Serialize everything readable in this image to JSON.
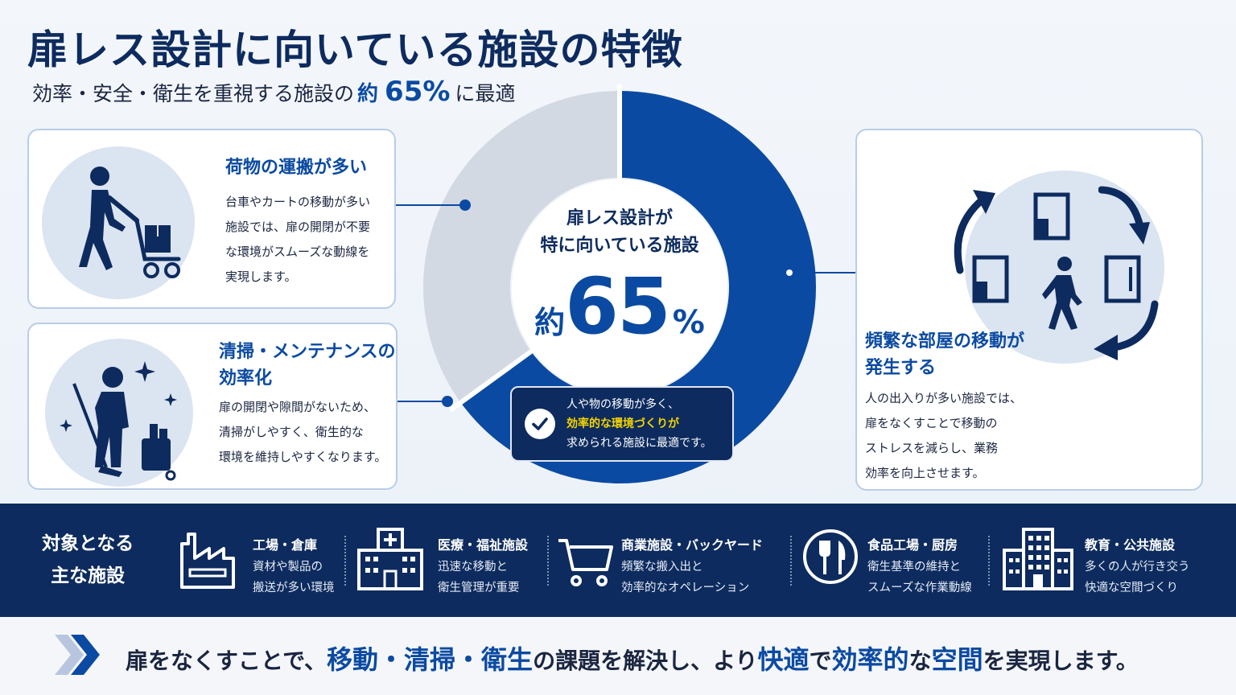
{
  "header": {
    "title": "扉レス設計に向いている施設の特徴",
    "subtitle_prefix": "効率・安全・衛生を重視する施設の",
    "subtitle_yaku": "約",
    "subtitle_pct": "65%",
    "subtitle_suffix": "に最適"
  },
  "cards": {
    "transport": {
      "title": "荷物の運搬が多い",
      "lines": [
        "台車やカートの移動が多い",
        "施設では、扉の開閉が不要",
        "な環境がスムーズな動線を",
        "実現します。"
      ],
      "icon": "person-pushing-cart-icon"
    },
    "cleaning": {
      "title_lines": [
        "清掃・メンテナンスの",
        "効率化"
      ],
      "lines": [
        "扉の開閉や隙間がないため、",
        "清掃がしやすく、衛生的な",
        "環境を維持しやすくなります。"
      ],
      "icon": "cleaning-person-icon"
    },
    "movement": {
      "title_lines": [
        "頻繁な部屋の移動が",
        "発生する"
      ],
      "lines": [
        "人の出入りが多い施設では、",
        "扉をなくすことで移動の",
        "ストレスを減らし、業務",
        "効率を向上させます。"
      ],
      "icon": "room-movement-icon"
    }
  },
  "donut": {
    "heading_lines": [
      "扉レス設計が",
      "特に向いている施設"
    ],
    "yaku": "約",
    "number": "65",
    "unit": "%",
    "value_percent": 65,
    "colors": {
      "filled": "#0b4aa2",
      "rest": "#d3d9e2"
    }
  },
  "callout": {
    "line1": "人や物の移動が多く、",
    "line2": "効率的な環境づくりが",
    "line3": "求められる施設に最適です。",
    "icon": "check-icon"
  },
  "facilities": {
    "title_lines": [
      "対象となる",
      "主な施設"
    ],
    "items": [
      {
        "name": "工場・倉庫",
        "desc": [
          "資材や製品の",
          "搬送が多い環境"
        ],
        "icon": "factory-icon"
      },
      {
        "name": "医療・福祉施設",
        "desc": [
          "迅速な移動と",
          "衛生管理が重要"
        ],
        "icon": "hospital-icon"
      },
      {
        "name": "商業施設・バックヤード",
        "desc": [
          "頻繁な搬入出と",
          "効率的なオペレーション"
        ],
        "icon": "shopping-cart-icon"
      },
      {
        "name": "食品工場・厨房",
        "desc": [
          "衛生基準の維持と",
          "スムーズな作業動線"
        ],
        "icon": "fork-knife-icon"
      },
      {
        "name": "教育・公共施設",
        "desc": [
          "多くの人が行き交う",
          "快適な空間づくり"
        ],
        "icon": "building-icon"
      }
    ]
  },
  "footer": {
    "p1": "扉をなくすことで、",
    "b1": "移動・清掃・衛生",
    "p2": "の課題を解決し、より",
    "b2": "快適",
    "p3": "で",
    "b3": "効率的",
    "p4": "な",
    "b4": "空間",
    "p5": "を実現します。",
    "icon": "double-chevron-right-icon"
  },
  "colors": {
    "navy": "#0d2b5e",
    "accent": "#0b4aa2",
    "highlight": "#f5d300"
  }
}
